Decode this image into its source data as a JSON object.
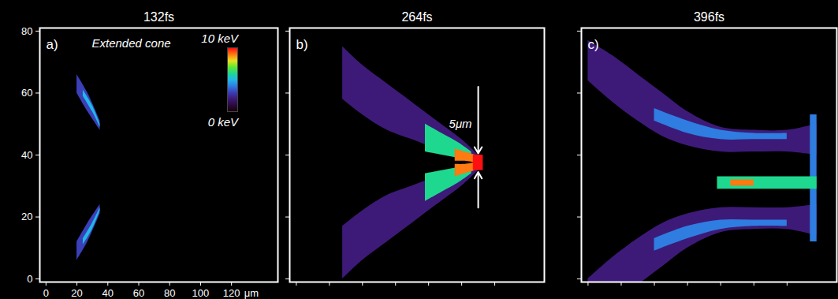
{
  "chart_data": [
    {
      "type": "area",
      "title": "132fs",
      "annotations": [
        {
          "text": "a)"
        },
        {
          "text": "Extended cone"
        }
      ],
      "xlabel": "μm",
      "xlim": [
        -4,
        150
      ],
      "ylim": [
        -1,
        81
      ],
      "xticks": [
        0,
        20,
        40,
        60,
        80,
        100,
        120
      ],
      "yticks": [
        0,
        20,
        40,
        60,
        80
      ],
      "colorbar": {
        "range": [
          0,
          10
        ],
        "ticks": [
          {
            "value": 10,
            "label": "10 keV"
          },
          {
            "value": 0,
            "label": "0 keV"
          }
        ]
      },
      "regions": [
        {
          "value": 3,
          "x": [
            20,
            27,
            35
          ],
          "y1": [
            60,
            54,
            48
          ],
          "y2": [
            66,
            60,
            51
          ]
        },
        {
          "value": 3,
          "x": [
            20,
            27,
            35
          ],
          "y1": [
            6,
            12,
            21
          ],
          "y2": [
            12,
            18,
            24
          ]
        },
        {
          "value": 5,
          "x": [
            24,
            30,
            35
          ],
          "y1": [
            59,
            54,
            49
          ],
          "y2": [
            61,
            56,
            50
          ]
        },
        {
          "value": 5,
          "x": [
            24,
            30,
            35
          ],
          "y1": [
            11,
            16,
            22
          ],
          "y2": [
            13,
            18,
            23
          ]
        }
      ]
    },
    {
      "type": "area",
      "title": "264fs",
      "annotations": [
        {
          "text": "b)"
        },
        {
          "text": "5μm"
        }
      ],
      "xlim": [
        -4,
        150
      ],
      "ylim": [
        -1,
        81
      ],
      "xticks": [
        0,
        20,
        40,
        60,
        80,
        100,
        120
      ],
      "yticks": [
        0,
        20,
        40,
        60,
        80
      ],
      "tick_labels": false,
      "regions": [
        {
          "value": 2,
          "x": [
            28,
            40,
            55,
            70,
            85,
            100,
            110
          ],
          "y1": [
            58,
            53,
            48,
            45,
            42,
            40,
            38
          ],
          "y2": [
            75,
            69,
            63,
            57,
            51,
            45,
            40
          ]
        },
        {
          "value": 2,
          "x": [
            28,
            40,
            55,
            70,
            85,
            100,
            110
          ],
          "y1": [
            0,
            6,
            12,
            18,
            24,
            30,
            35
          ],
          "y2": [
            17,
            22,
            27,
            30,
            33,
            35,
            37
          ]
        },
        {
          "value": 6,
          "x": [
            78,
            88,
            98,
            106
          ],
          "y1": [
            41,
            40,
            39,
            38
          ],
          "y2": [
            50,
            47,
            44,
            41
          ]
        },
        {
          "value": 6,
          "x": [
            78,
            88,
            98,
            106
          ],
          "y1": [
            25,
            28,
            31,
            34
          ],
          "y2": [
            34,
            35,
            36,
            37
          ]
        },
        {
          "value": 9,
          "x": [
            96,
            102,
            108
          ],
          "y1": [
            38,
            38,
            37.5
          ],
          "y2": [
            42,
            41,
            40
          ]
        },
        {
          "value": 9,
          "x": [
            96,
            102,
            108
          ],
          "y1": [
            33,
            34,
            35
          ],
          "y2": [
            37,
            37,
            37.5
          ]
        },
        {
          "value": 10,
          "x": [
            107,
            113
          ],
          "y1": [
            35,
            35
          ],
          "y2": [
            40,
            40
          ]
        }
      ]
    },
    {
      "type": "area",
      "title": "396fs",
      "annotations": [
        {
          "text": "c)"
        }
      ],
      "xlim": [
        -4,
        150
      ],
      "ylim": [
        -1,
        81
      ],
      "xticks": [
        0,
        20,
        40,
        60,
        80,
        100,
        120
      ],
      "yticks": [
        0,
        20,
        40,
        60,
        80
      ],
      "tick_labels": false,
      "regions": [
        {
          "value": 2,
          "x": [
            0,
            15,
            30,
            45,
            60,
            80,
            100,
            120,
            138
          ],
          "y1": [
            64,
            57,
            51,
            46,
            43,
            41,
            41,
            41,
            40
          ],
          "y2": [
            77,
            72,
            66,
            60,
            54,
            49,
            48,
            48,
            50
          ]
        },
        {
          "value": 2,
          "x": [
            0,
            15,
            30,
            45,
            60,
            80,
            100,
            120,
            138
          ],
          "y1": [
            -13,
            -8,
            -2,
            4,
            10,
            15,
            16,
            16,
            14
          ],
          "y2": [
            0,
            7,
            13,
            18,
            21,
            23,
            23,
            23,
            24
          ]
        },
        {
          "value": 4,
          "x": [
            40,
            60,
            80,
            100,
            120
          ],
          "y1": [
            51,
            47,
            45,
            45,
            45
          ],
          "y2": [
            55,
            51,
            48,
            47,
            47
          ]
        },
        {
          "value": 4,
          "x": [
            40,
            60,
            80,
            100,
            120
          ],
          "y1": [
            9,
            13,
            16,
            17,
            17
          ],
          "y2": [
            13,
            17,
            19,
            19,
            19
          ]
        },
        {
          "value": 4,
          "x": [
            134,
            138
          ],
          "y1": [
            12,
            12
          ],
          "y2": [
            53,
            53
          ]
        },
        {
          "value": 6,
          "x": [
            78,
            138
          ],
          "y1": [
            29,
            29
          ],
          "y2": [
            33,
            33
          ]
        },
        {
          "value": 9,
          "x": [
            86,
            100
          ],
          "y1": [
            30,
            30
          ],
          "y2": [
            32,
            32
          ]
        }
      ]
    }
  ]
}
